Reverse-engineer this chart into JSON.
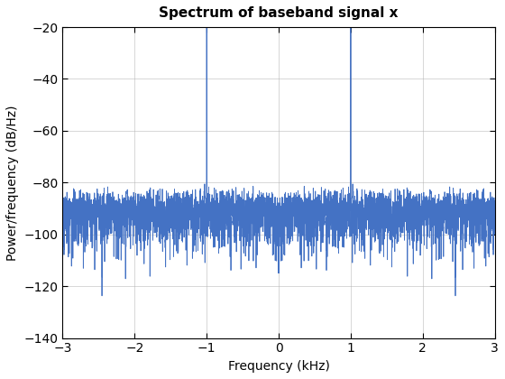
{
  "title": "Spectrum of baseband signal x",
  "xlabel": "Frequency (kHz)",
  "ylabel": "Power/frequency (dB/Hz)",
  "xlim": [
    -3.0,
    3.0
  ],
  "ylim": [
    -140,
    -20
  ],
  "yticks": [
    -140,
    -120,
    -100,
    -80,
    -60,
    -40,
    -20
  ],
  "xticks": [
    -3,
    -2,
    -1,
    0,
    1,
    2,
    3
  ],
  "line_color": "#4472C4",
  "bg_color": "#ffffff",
  "grid_color": "#b0b0b0",
  "title_fontsize": 11,
  "label_fontsize": 10
}
